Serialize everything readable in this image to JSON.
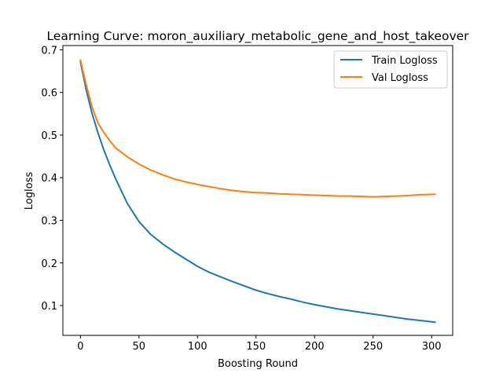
{
  "chart_data": {
    "type": "line",
    "title": "Learning Curve: moron_auxiliary_metabolic_gene_and_host_takeover",
    "xlabel": "Boosting Round",
    "ylabel": "Logloss",
    "xlim": [
      -15,
      318
    ],
    "ylim": [
      0.03,
      0.71
    ],
    "xticks": [
      0,
      50,
      100,
      150,
      200,
      250,
      300
    ],
    "yticks": [
      0.1,
      0.2,
      0.3,
      0.4,
      0.5,
      0.6,
      0.7
    ],
    "ytick_labels": [
      "0.1",
      "0.2",
      "0.3",
      "0.4",
      "0.5",
      "0.6",
      "0.7"
    ],
    "grid": false,
    "legend": "top-right",
    "series": [
      {
        "name": "Train Logloss",
        "color": "#1f77b4",
        "x": [
          0,
          5,
          10,
          15,
          20,
          25,
          30,
          40,
          50,
          60,
          70,
          80,
          90,
          100,
          110,
          120,
          130,
          140,
          150,
          160,
          170,
          180,
          190,
          200,
          210,
          220,
          230,
          240,
          250,
          260,
          270,
          280,
          290,
          303
        ],
        "y": [
          0.672,
          0.605,
          0.55,
          0.505,
          0.465,
          0.43,
          0.398,
          0.34,
          0.297,
          0.267,
          0.245,
          0.226,
          0.209,
          0.192,
          0.178,
          0.167,
          0.156,
          0.146,
          0.136,
          0.128,
          0.121,
          0.115,
          0.108,
          0.102,
          0.097,
          0.092,
          0.088,
          0.084,
          0.08,
          0.076,
          0.072,
          0.068,
          0.065,
          0.061
        ]
      },
      {
        "name": "Val Logloss",
        "color": "#ff7f0e",
        "x": [
          0,
          5,
          10,
          15,
          20,
          25,
          30,
          40,
          50,
          60,
          70,
          80,
          90,
          100,
          110,
          120,
          130,
          140,
          150,
          160,
          170,
          180,
          190,
          200,
          210,
          220,
          230,
          240,
          250,
          260,
          270,
          280,
          290,
          303
        ],
        "y": [
          0.676,
          0.617,
          0.565,
          0.528,
          0.506,
          0.487,
          0.47,
          0.449,
          0.432,
          0.418,
          0.407,
          0.397,
          0.39,
          0.384,
          0.379,
          0.374,
          0.37,
          0.367,
          0.365,
          0.364,
          0.362,
          0.361,
          0.36,
          0.359,
          0.358,
          0.357,
          0.357,
          0.356,
          0.355,
          0.356,
          0.357,
          0.358,
          0.36,
          0.361
        ]
      }
    ]
  }
}
